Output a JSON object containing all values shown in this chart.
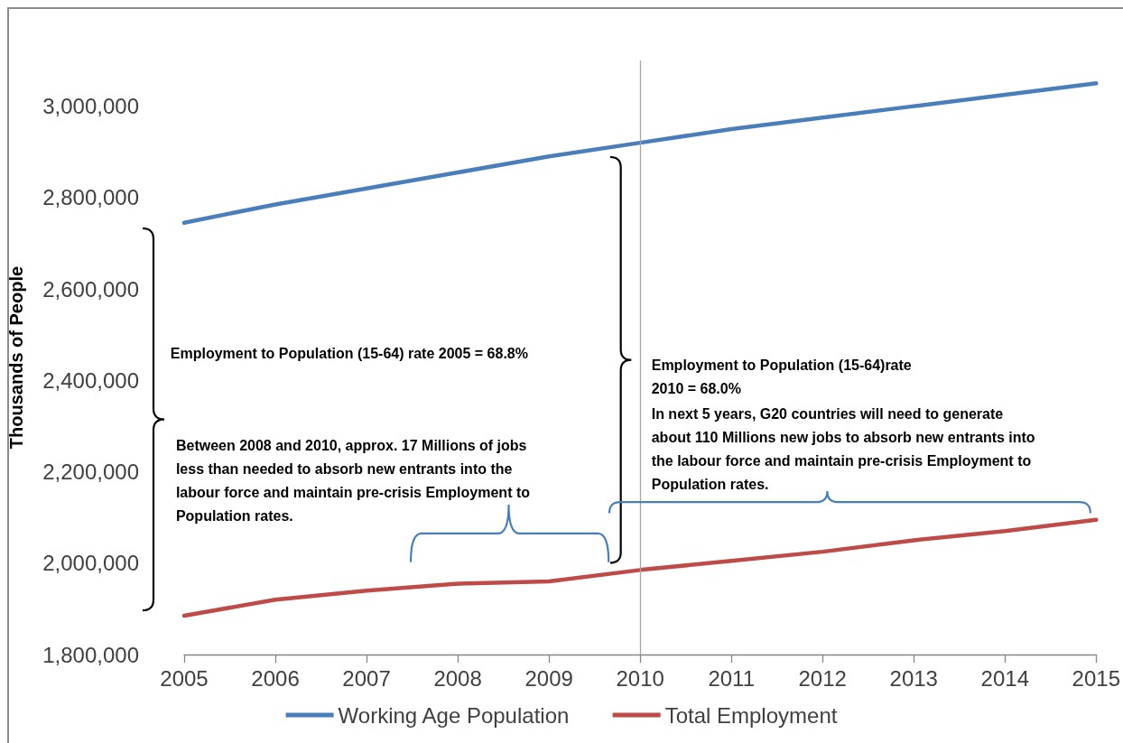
{
  "chart_data": {
    "type": "line",
    "ylabel": "Thousands of People",
    "x": [
      2005,
      2006,
      2007,
      2008,
      2009,
      2010,
      2011,
      2012,
      2013,
      2014,
      2015
    ],
    "series": [
      {
        "name": "Working Age Population",
        "color": "#4a7ebb",
        "values": [
          2745000,
          2785000,
          2820000,
          2855000,
          2890000,
          2920000,
          2950000,
          2975000,
          3000000,
          3025000,
          3050000
        ]
      },
      {
        "name": "Total Employment",
        "color": "#be4b48",
        "values": [
          1885000,
          1920000,
          1940000,
          1955000,
          1960000,
          1985000,
          2005000,
          2025000,
          2050000,
          2070000,
          2095000
        ]
      }
    ],
    "xlim": [
      2005,
      2015
    ],
    "xticks": [
      2005,
      2006,
      2007,
      2008,
      2009,
      2010,
      2011,
      2012,
      2013,
      2014,
      2015
    ],
    "ylim": [
      1800000,
      3100000
    ],
    "yticks": [
      {
        "value": 1800000,
        "label": "1,800,000"
      },
      {
        "value": 2000000,
        "label": "2,000,000"
      },
      {
        "value": 2200000,
        "label": "2,200,000"
      },
      {
        "value": 2400000,
        "label": "2,400,000"
      },
      {
        "value": 2600000,
        "label": "2,600,000"
      },
      {
        "value": 2800000,
        "label": "2,800,000"
      },
      {
        "value": 3000000,
        "label": "3,000,000"
      }
    ],
    "ref_lines": [
      {
        "axis": "x",
        "value": 2010,
        "color": "#a6a6a6"
      }
    ],
    "annotations": [
      "Employment to Population (15-64) rate 2005 = 68.8%",
      "Employment to Population (15-64)rate\n2010 = 68.0%",
      "In next 5 years, G20 countries will need to generate\nabout 110 Millions new jobs to absorb new entrants into\nthe labour force and maintain pre-crisis Employment to\nPopulation rates.",
      "Between 2008 and 2010, approx. 17 Millions of jobs\nless than needed to absorb new entrants into the\nlabour force and maintain pre-crisis Employment to\nPopulation rates."
    ],
    "legend": "bottom",
    "marker": "none"
  }
}
